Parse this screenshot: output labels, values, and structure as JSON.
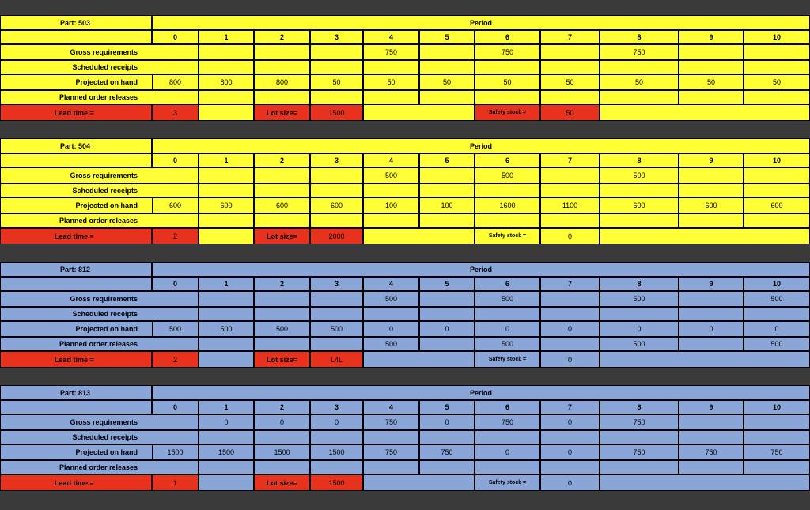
{
  "colors": {
    "yellow": "#ffff33",
    "blue": "#8aa6d8",
    "red": "#e8321e",
    "gap": "#3a3a3a"
  },
  "labels": {
    "period": "Period",
    "gross": "Gross requirements",
    "scheduled": "Scheduled receipts",
    "projected": "Projected on hand",
    "planned": "Planned order releases",
    "lead_time": "Lead time =",
    "lot_size": "Lot size=",
    "safety_stock": "Safety stock ="
  },
  "periods": [
    "0",
    "1",
    "2",
    "3",
    "4",
    "5",
    "6",
    "7",
    "8",
    "9",
    "10"
  ],
  "parts": [
    {
      "title": "Part: 503",
      "color": "yellow",
      "gross": [
        "",
        "",
        "",
        "",
        "750",
        "",
        "750",
        "",
        "750",
        "",
        ""
      ],
      "scheduled": [
        "",
        "",
        "",
        "",
        "",
        "",
        "",
        "",
        "",
        "",
        ""
      ],
      "projected": [
        "800",
        "800",
        "800",
        "50",
        "50",
        "50",
        "50",
        "50",
        "50",
        "50",
        "50"
      ],
      "planned": [
        "",
        "",
        "",
        "",
        "",
        "",
        "",
        "",
        "",
        "",
        ""
      ],
      "lead_time": "3",
      "lot_size": "1500",
      "safety_stock": "50",
      "safety_red": true
    },
    {
      "title": "Part: 504",
      "color": "yellow",
      "gross": [
        "",
        "",
        "",
        "",
        "500",
        "",
        "500",
        "",
        "500",
        "",
        ""
      ],
      "scheduled": [
        "",
        "",
        "",
        "",
        "",
        "",
        "",
        "",
        "",
        "",
        ""
      ],
      "projected": [
        "600",
        "600",
        "600",
        "600",
        "100",
        "100",
        "1600",
        "1100",
        "600",
        "600",
        "600"
      ],
      "planned": [
        "",
        "",
        "",
        "",
        "",
        "",
        "",
        "",
        "",
        "",
        ""
      ],
      "lead_time": "2",
      "lot_size": "2000",
      "safety_stock": "0",
      "safety_red": false
    },
    {
      "title": "Part: 812",
      "color": "blue",
      "gross": [
        "",
        "",
        "",
        "",
        "500",
        "",
        "500",
        "",
        "500",
        "",
        "500"
      ],
      "scheduled": [
        "",
        "",
        "",
        "",
        "",
        "",
        "",
        "",
        "",
        "",
        ""
      ],
      "projected": [
        "500",
        "500",
        "500",
        "500",
        "0",
        "0",
        "0",
        "0",
        "0",
        "0",
        "0"
      ],
      "planned": [
        "",
        "",
        "",
        "",
        "500",
        "",
        "500",
        "",
        "500",
        "",
        "500"
      ],
      "lead_time": "2",
      "lot_size": "L4L",
      "safety_stock": "0",
      "safety_red": false
    },
    {
      "title": "Part: 813",
      "color": "blue",
      "gross": [
        "",
        "0",
        "0",
        "0",
        "750",
        "0",
        "750",
        "0",
        "750",
        "",
        ""
      ],
      "scheduled": [
        "",
        "",
        "",
        "",
        "",
        "",
        "",
        "",
        "",
        "",
        ""
      ],
      "projected": [
        "1500",
        "1500",
        "1500",
        "1500",
        "750",
        "750",
        "0",
        "0",
        "750",
        "750",
        "750"
      ],
      "planned": [
        "",
        "",
        "",
        "",
        "",
        "",
        "",
        "",
        "",
        "",
        ""
      ],
      "lead_time": "1",
      "lot_size": "1500",
      "safety_stock": "0",
      "safety_red": false
    }
  ]
}
